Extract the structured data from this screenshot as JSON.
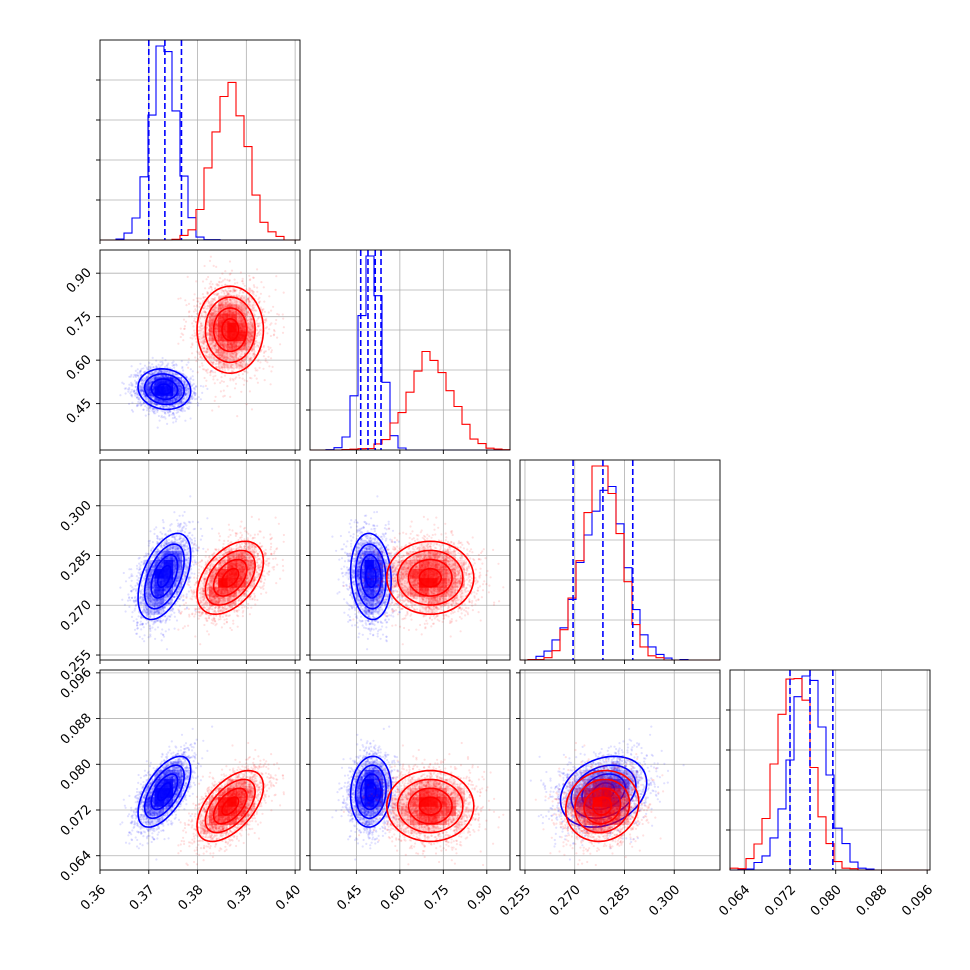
{
  "chart_data": {
    "type": "corner",
    "grid": true,
    "series": [
      {
        "color": "#0000ff",
        "mean": [
          0.3732,
          0.5,
          0.2787,
          0.0752
        ],
        "sd": [
          0.0027,
          0.035,
          0.0065,
          0.0031
        ],
        "corr": [
          [
            1.0,
            -0.1,
            0.5,
            0.6
          ],
          [
            -0.1,
            1.0,
            -0.1,
            0.1
          ],
          [
            0.5,
            -0.1,
            1.0,
            0.25
          ],
          [
            0.6,
            0.1,
            0.25,
            1.0
          ]
        ],
        "quantiles": [
          [
            0.37,
            0.3733,
            0.3767
          ],
          [
            0.465,
            0.49,
            0.515,
            0.535
          ],
          [
            0.2695,
            0.2785,
            0.2875
          ],
          [
            0.072,
            0.0755,
            0.0795
          ]
        ]
      },
      {
        "color": "#ff0000",
        "mean": [
          0.3867,
          0.705,
          0.2783,
          0.0727
        ],
        "sd": [
          0.0034,
          0.075,
          0.0055,
          0.0031
        ],
        "corr": [
          [
            1.0,
            0.0,
            0.45,
            0.55
          ],
          [
            0.0,
            1.0,
            0.0,
            0.0
          ],
          [
            0.45,
            0.0,
            1.0,
            0.1
          ],
          [
            0.55,
            0.0,
            0.1,
            1.0
          ]
        ]
      }
    ],
    "parameters": [
      {
        "range": [
          0.36,
          0.401
        ],
        "ticks": [
          "0.36",
          "0.37",
          "0.38",
          "0.39",
          "0.40"
        ],
        "tick_values": [
          0.36,
          0.37,
          0.38,
          0.39,
          0.4
        ]
      },
      {
        "range": [
          0.29,
          0.98
        ],
        "ticks": [
          "0.45",
          "0.60",
          "0.75",
          "0.90"
        ],
        "tick_values": [
          0.45,
          0.6,
          0.75,
          0.9
        ]
      },
      {
        "range": [
          0.2535,
          0.3138
        ],
        "ticks": [
          "0.255",
          "0.270",
          "0.285",
          "0.300"
        ],
        "tick_values": [
          0.255,
          0.27,
          0.285,
          0.3
        ]
      },
      {
        "range": [
          0.0615,
          0.0965
        ],
        "ticks": [
          "0.064",
          "0.072",
          "0.080",
          "0.088",
          "0.096"
        ],
        "tick_values": [
          0.064,
          0.072,
          0.08,
          0.088,
          0.096
        ]
      }
    ]
  }
}
